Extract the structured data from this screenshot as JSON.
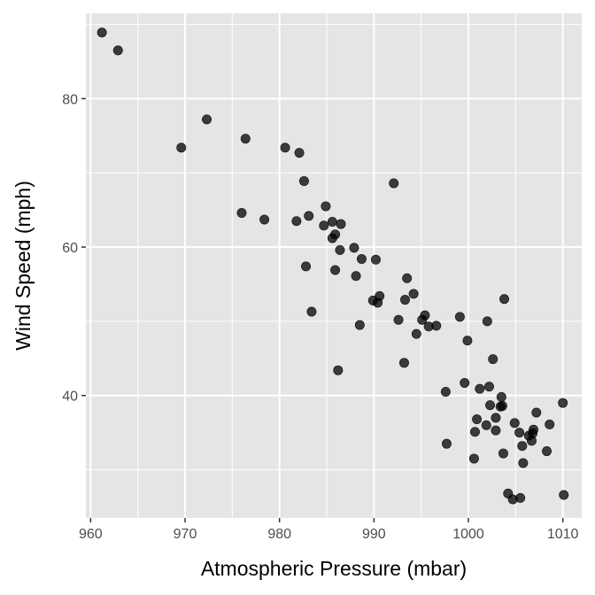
{
  "chart_data": {
    "type": "scatter",
    "title": "",
    "xlabel": "Atmospheric Pressure (mbar)",
    "ylabel": "Wind Speed (mph)",
    "xlim": [
      959.5,
      1012.0
    ],
    "ylim": [
      23.5,
      91.5
    ],
    "x_ticks": [
      960,
      970,
      980,
      990,
      1000,
      1010
    ],
    "y_ticks": [
      40,
      60,
      80
    ],
    "x_tick_labels": [
      "960",
      "970",
      "980",
      "990",
      "1000",
      "1010"
    ],
    "y_tick_labels": [
      "40",
      "60",
      "80"
    ],
    "grid": true,
    "legend": "none",
    "colors": {
      "panel": "#e5e5e5",
      "grid": "#ffffff",
      "point": "#000000",
      "point_opacity": 0.75,
      "tick_text": "#4d4d4d"
    },
    "points": [
      {
        "x": 961.2,
        "y": 88.9
      },
      {
        "x": 962.9,
        "y": 86.5
      },
      {
        "x": 969.6,
        "y": 73.4
      },
      {
        "x": 972.3,
        "y": 77.2
      },
      {
        "x": 976.0,
        "y": 64.6
      },
      {
        "x": 976.4,
        "y": 74.6
      },
      {
        "x": 978.4,
        "y": 63.7
      },
      {
        "x": 980.6,
        "y": 73.4
      },
      {
        "x": 981.8,
        "y": 63.5
      },
      {
        "x": 982.1,
        "y": 72.7
      },
      {
        "x": 982.6,
        "y": 68.9
      },
      {
        "x": 982.8,
        "y": 57.4
      },
      {
        "x": 983.1,
        "y": 64.2
      },
      {
        "x": 983.4,
        "y": 51.3
      },
      {
        "x": 984.7,
        "y": 62.9
      },
      {
        "x": 984.9,
        "y": 65.5
      },
      {
        "x": 985.6,
        "y": 63.4
      },
      {
        "x": 985.6,
        "y": 61.2
      },
      {
        "x": 985.9,
        "y": 61.7
      },
      {
        "x": 985.9,
        "y": 56.9
      },
      {
        "x": 986.2,
        "y": 43.4
      },
      {
        "x": 986.4,
        "y": 59.6
      },
      {
        "x": 986.5,
        "y": 63.1
      },
      {
        "x": 987.9,
        "y": 59.9
      },
      {
        "x": 988.1,
        "y": 56.1
      },
      {
        "x": 988.5,
        "y": 49.5
      },
      {
        "x": 988.7,
        "y": 58.4
      },
      {
        "x": 989.9,
        "y": 52.8
      },
      {
        "x": 990.2,
        "y": 58.3
      },
      {
        "x": 990.4,
        "y": 52.5
      },
      {
        "x": 990.6,
        "y": 53.4
      },
      {
        "x": 992.1,
        "y": 68.6
      },
      {
        "x": 992.6,
        "y": 50.2
      },
      {
        "x": 993.2,
        "y": 44.4
      },
      {
        "x": 993.3,
        "y": 52.9
      },
      {
        "x": 993.5,
        "y": 55.8
      },
      {
        "x": 994.2,
        "y": 53.7
      },
      {
        "x": 994.5,
        "y": 48.3
      },
      {
        "x": 995.1,
        "y": 50.2
      },
      {
        "x": 995.4,
        "y": 50.8
      },
      {
        "x": 995.8,
        "y": 49.3
      },
      {
        "x": 996.6,
        "y": 49.4
      },
      {
        "x": 997.6,
        "y": 40.5
      },
      {
        "x": 997.7,
        "y": 33.5
      },
      {
        "x": 999.1,
        "y": 50.6
      },
      {
        "x": 999.6,
        "y": 41.7
      },
      {
        "x": 999.9,
        "y": 47.4
      },
      {
        "x": 1000.6,
        "y": 31.5
      },
      {
        "x": 1000.7,
        "y": 35.1
      },
      {
        "x": 1000.9,
        "y": 36.8
      },
      {
        "x": 1001.2,
        "y": 40.9
      },
      {
        "x": 1001.9,
        "y": 36.0
      },
      {
        "x": 1002.0,
        "y": 50.0
      },
      {
        "x": 1002.2,
        "y": 41.2
      },
      {
        "x": 1002.3,
        "y": 38.7
      },
      {
        "x": 1002.6,
        "y": 44.9
      },
      {
        "x": 1002.9,
        "y": 35.3
      },
      {
        "x": 1002.9,
        "y": 37.0
      },
      {
        "x": 1003.4,
        "y": 38.5
      },
      {
        "x": 1003.5,
        "y": 39.8
      },
      {
        "x": 1003.6,
        "y": 38.6
      },
      {
        "x": 1003.7,
        "y": 32.2
      },
      {
        "x": 1003.8,
        "y": 53.0
      },
      {
        "x": 1004.2,
        "y": 26.8
      },
      {
        "x": 1004.7,
        "y": 26.0
      },
      {
        "x": 1004.9,
        "y": 36.3
      },
      {
        "x": 1005.4,
        "y": 35.0
      },
      {
        "x": 1005.5,
        "y": 26.2
      },
      {
        "x": 1005.7,
        "y": 33.2
      },
      {
        "x": 1005.8,
        "y": 30.9
      },
      {
        "x": 1006.4,
        "y": 34.6
      },
      {
        "x": 1006.7,
        "y": 33.9
      },
      {
        "x": 1006.8,
        "y": 34.9
      },
      {
        "x": 1006.9,
        "y": 35.4
      },
      {
        "x": 1007.2,
        "y": 37.7
      },
      {
        "x": 1008.3,
        "y": 32.5
      },
      {
        "x": 1008.6,
        "y": 36.1
      },
      {
        "x": 1010.0,
        "y": 39.0
      },
      {
        "x": 1010.1,
        "y": 26.6
      }
    ]
  }
}
